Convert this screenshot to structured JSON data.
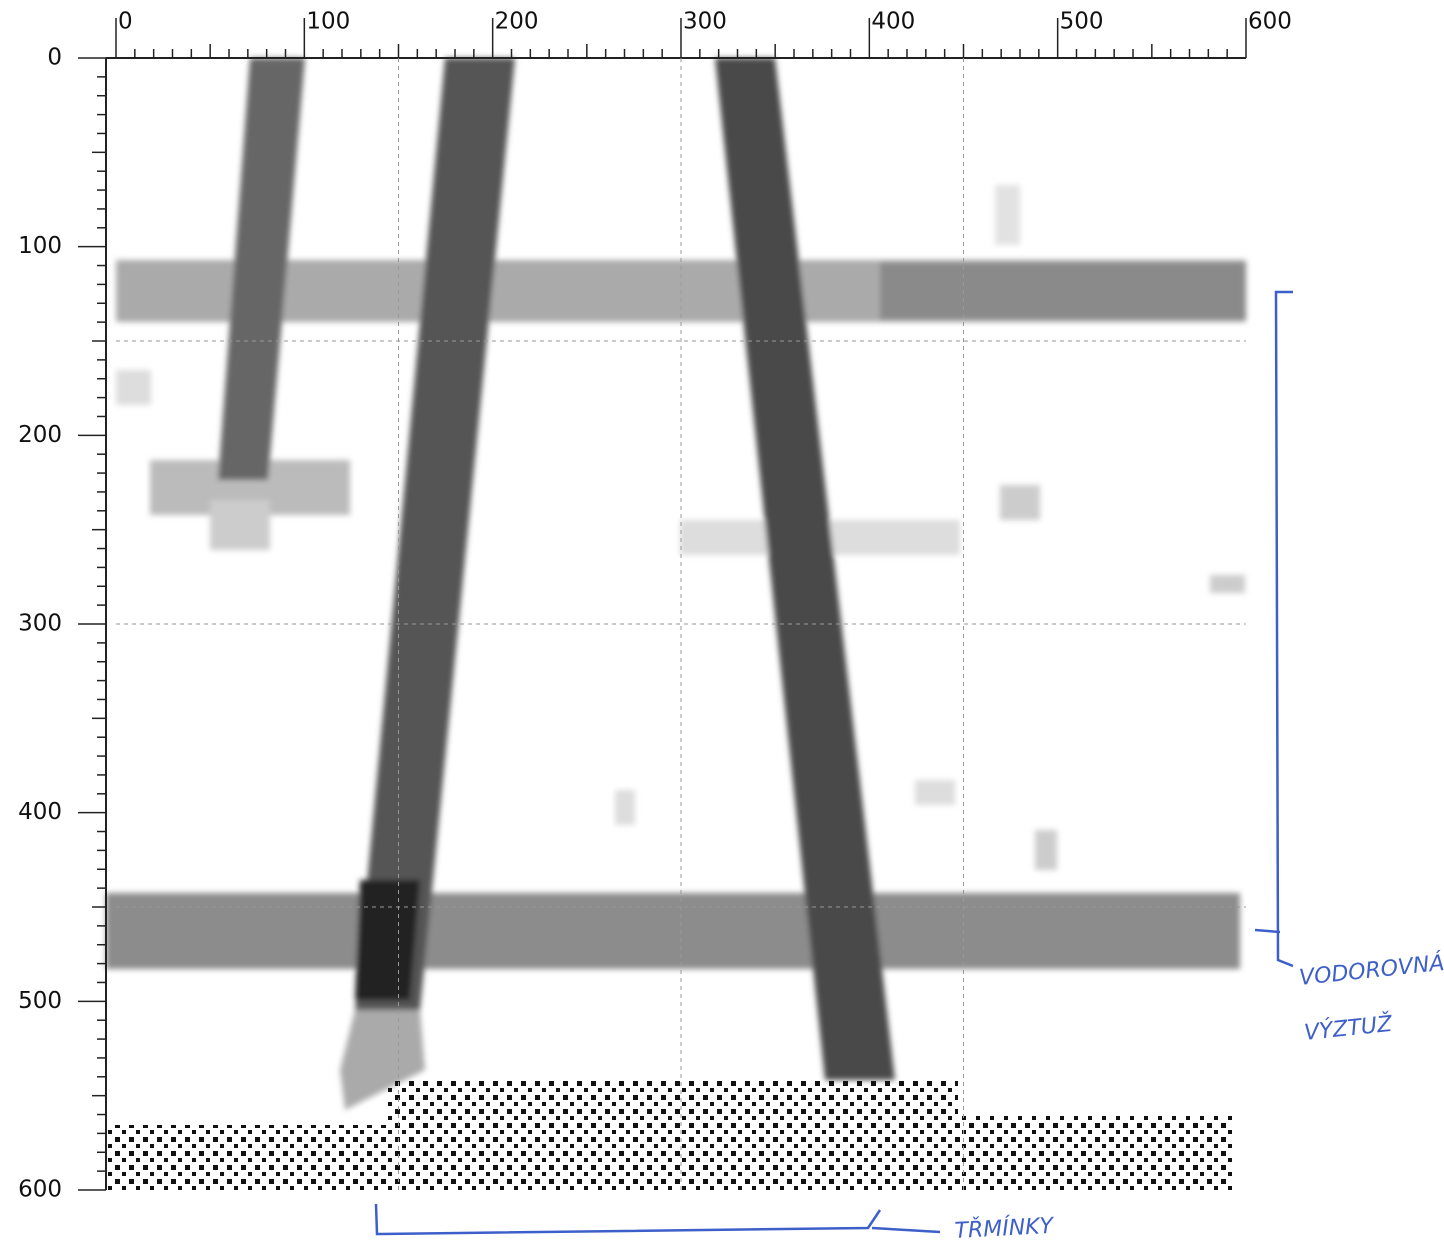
{
  "chart_data": {
    "type": "image",
    "xlim": [
      0,
      600
    ],
    "ylim": [
      0,
      600
    ],
    "xticks": [
      0,
      100,
      200,
      300,
      400,
      500,
      600
    ],
    "yticks": [
      0,
      100,
      200,
      300,
      400,
      500,
      600
    ],
    "grid_x": [
      150,
      300,
      450
    ],
    "grid_y": [
      150,
      300,
      450
    ],
    "annotations": [
      "VODOROVNÁ",
      "VÝZTUŽ",
      "TŘMÍNKY"
    ]
  }
}
